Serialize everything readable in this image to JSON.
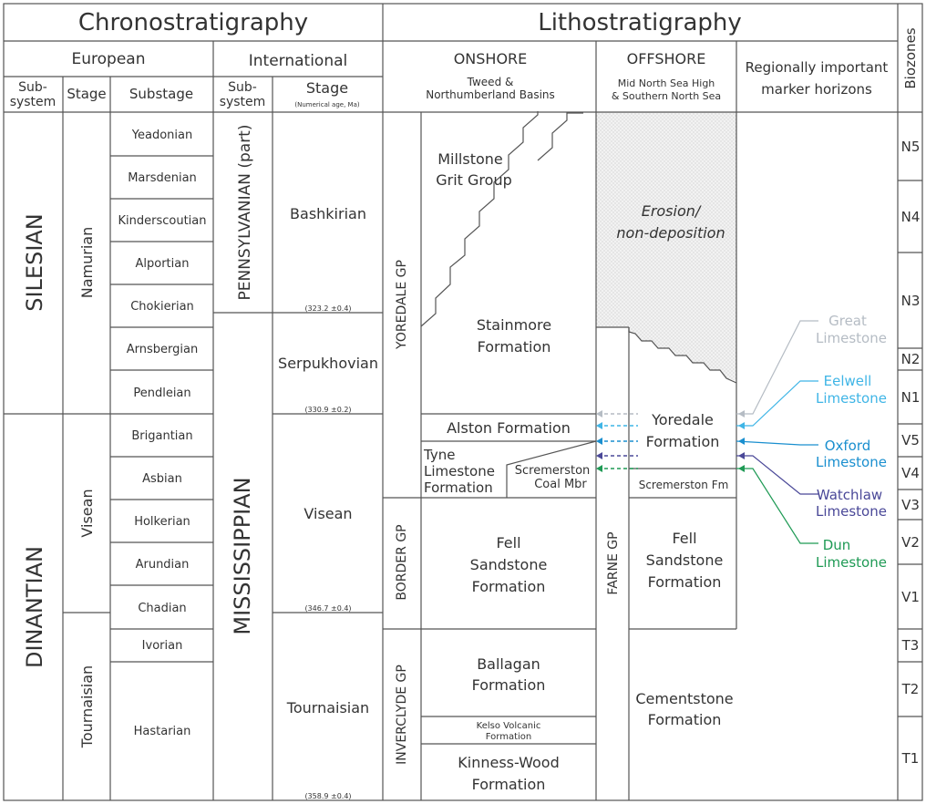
{
  "headers": {
    "chrono": "Chronostratigraphy",
    "litho": "Lithostratigraphy",
    "european": "European",
    "international": "International",
    "biozones": "Biozones",
    "subsystem_l1": "Sub-",
    "subsystem_l2": "system",
    "stage": "Stage",
    "substage": "Substage",
    "intl_subsystem_l1": "Sub-",
    "intl_subsystem_l2": "system",
    "intl_stage": "Stage",
    "intl_stage_note": "(Numerical age, Ma)",
    "onshore": "ONSHORE",
    "onshore_sub1": "Tweed &",
    "onshore_sub2": "Northumberland Basins",
    "offshore": "OFFSHORE",
    "offshore_sub1": "Mid North Sea High",
    "offshore_sub2": "& Southern North Sea",
    "marker_l1": "Regionally important",
    "marker_l2": "marker horizons"
  },
  "subsystems": [
    "SILESIAN",
    "DINANTIAN"
  ],
  "stages": [
    "Namurian",
    "Visean",
    "Tournaisian"
  ],
  "substages": [
    "Yeadonian",
    "Marsdenian",
    "Kinderscoutian",
    "Alportian",
    "Chokierian",
    "Arnsbergian",
    "Pendleian",
    "Brigantian",
    "Asbian",
    "Holkerian",
    "Arundian",
    "Chadian",
    "Ivorian",
    "Hastarian"
  ],
  "intl_subsystems": [
    "PENNSYLVANIAN (part)",
    "MISSISSIPPIAN"
  ],
  "intl_stages": [
    "Bashkirian",
    "Serpukhovian",
    "Visean",
    "Tournaisian"
  ],
  "ages": [
    "(323.2 ±0.4)",
    "(330.9 ±0.2)",
    "(346.7 ±0.4)",
    "(358.9 ±0.4)"
  ],
  "groups": [
    "YOREDALE GP",
    "BORDER GP",
    "INVERCLYDE GP",
    "FARNE GP"
  ],
  "onshore_units": {
    "millstone_l1": "Millstone",
    "millstone_l2": "Grit Group",
    "stainmore_l1": "Stainmore",
    "stainmore_l2": "Formation",
    "alston": "Alston Formation",
    "tyne_l1": "Tyne",
    "tyne_l2": "Limestone",
    "tyne_l3": "Formation",
    "scremerston_l1": "Scremerston",
    "scremerston_l2": "Coal Mbr",
    "fell_l1": "Fell",
    "fell_l2": "Sandstone",
    "fell_l3": "Formation",
    "ballagan_l1": "Ballagan",
    "ballagan_l2": "Formation",
    "kelso_l1": "Kelso Volcanic",
    "kelso_l2": "Formation",
    "kinness_l1": "Kinness-Wood",
    "kinness_l2": "Formation"
  },
  "offshore_units": {
    "erosion_l1": "Erosion/",
    "erosion_l2": "non-deposition",
    "yoredale_l1": "Yoredale",
    "yoredale_l2": "Formation",
    "scremerston_fm": "Scremerston Fm",
    "fell_l1": "Fell",
    "fell_l2": "Sandstone",
    "fell_l3": "Formation",
    "cement_l1": "Cementstone",
    "cement_l2": "Formation"
  },
  "markers": [
    {
      "l1": "Great",
      "l2": "Limestone",
      "color": "#b5bcc4"
    },
    {
      "l1": "Eelwell",
      "l2": "Limestone",
      "color": "#3fb5e6"
    },
    {
      "l1": "Oxford",
      "l2": "Limestone",
      "color": "#1a8fcf"
    },
    {
      "l1": "Watchlaw",
      "l2": "Limestone",
      "color": "#4a4898"
    },
    {
      "l1": "Dun",
      "l2": "Limestone",
      "color": "#1f9a55"
    }
  ],
  "biozones": [
    "N5",
    "N4",
    "N3",
    "N2",
    "N1",
    "V5",
    "V4",
    "V3",
    "V2",
    "V1",
    "T3",
    "T2",
    "T1"
  ]
}
